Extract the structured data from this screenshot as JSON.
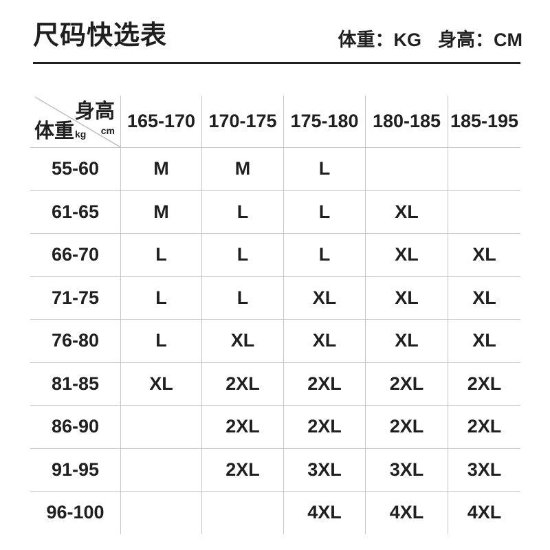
{
  "page": {
    "background": "#ffffff",
    "text_color": "#1f1f1f",
    "grid_color": "#c6c6c6",
    "rule_color": "#1e1e1e"
  },
  "header": {
    "title": "尺码快选表",
    "unit_weight": "体重：KG",
    "unit_height": "身高：CM"
  },
  "table": {
    "corner": {
      "height_label": "身高",
      "height_unit": "cm",
      "weight_label": "体重",
      "weight_unit": "kg"
    },
    "columns": [
      "165-170",
      "170-175",
      "175-180",
      "180-185",
      "185-195"
    ],
    "rows": [
      {
        "weight": "55-60",
        "sizes": [
          "M",
          "M",
          "L",
          "",
          ""
        ]
      },
      {
        "weight": "61-65",
        "sizes": [
          "M",
          "L",
          "L",
          "XL",
          ""
        ]
      },
      {
        "weight": "66-70",
        "sizes": [
          "L",
          "L",
          "L",
          "XL",
          "XL"
        ]
      },
      {
        "weight": "71-75",
        "sizes": [
          "L",
          "L",
          "XL",
          "XL",
          "XL"
        ]
      },
      {
        "weight": "76-80",
        "sizes": [
          "L",
          "XL",
          "XL",
          "XL",
          "XL"
        ]
      },
      {
        "weight": "81-85",
        "sizes": [
          "XL",
          "2XL",
          "2XL",
          "2XL",
          "2XL"
        ]
      },
      {
        "weight": "86-90",
        "sizes": [
          "",
          "2XL",
          "2XL",
          "2XL",
          "2XL"
        ]
      },
      {
        "weight": "91-95",
        "sizes": [
          "",
          "2XL",
          "3XL",
          "3XL",
          "3XL"
        ]
      },
      {
        "weight": "96-100",
        "sizes": [
          "",
          "",
          "4XL",
          "4XL",
          "4XL"
        ]
      }
    ]
  },
  "chart_data": {
    "type": "table",
    "title": "尺码快选表",
    "column_axis": "身高 (cm)",
    "row_axis": "体重 (kg)",
    "columns": [
      "165-170",
      "170-175",
      "175-180",
      "180-185",
      "185-195"
    ],
    "rows": [
      {
        "weight": "55-60",
        "sizes": [
          "M",
          "M",
          "L",
          "",
          ""
        ]
      },
      {
        "weight": "61-65",
        "sizes": [
          "M",
          "L",
          "L",
          "XL",
          ""
        ]
      },
      {
        "weight": "66-70",
        "sizes": [
          "L",
          "L",
          "L",
          "XL",
          "XL"
        ]
      },
      {
        "weight": "71-75",
        "sizes": [
          "L",
          "L",
          "XL",
          "XL",
          "XL"
        ]
      },
      {
        "weight": "76-80",
        "sizes": [
          "L",
          "XL",
          "XL",
          "XL",
          "XL"
        ]
      },
      {
        "weight": "81-85",
        "sizes": [
          "XL",
          "2XL",
          "2XL",
          "2XL",
          "2XL"
        ]
      },
      {
        "weight": "86-90",
        "sizes": [
          "",
          "2XL",
          "2XL",
          "2XL",
          "2XL"
        ]
      },
      {
        "weight": "91-95",
        "sizes": [
          "",
          "2XL",
          "3XL",
          "3XL",
          "3XL"
        ]
      },
      {
        "weight": "96-100",
        "sizes": [
          "",
          "",
          "4XL",
          "4XL",
          "4XL"
        ]
      }
    ],
    "legend": "none",
    "units_note": "体重：KG 身高：CM"
  }
}
